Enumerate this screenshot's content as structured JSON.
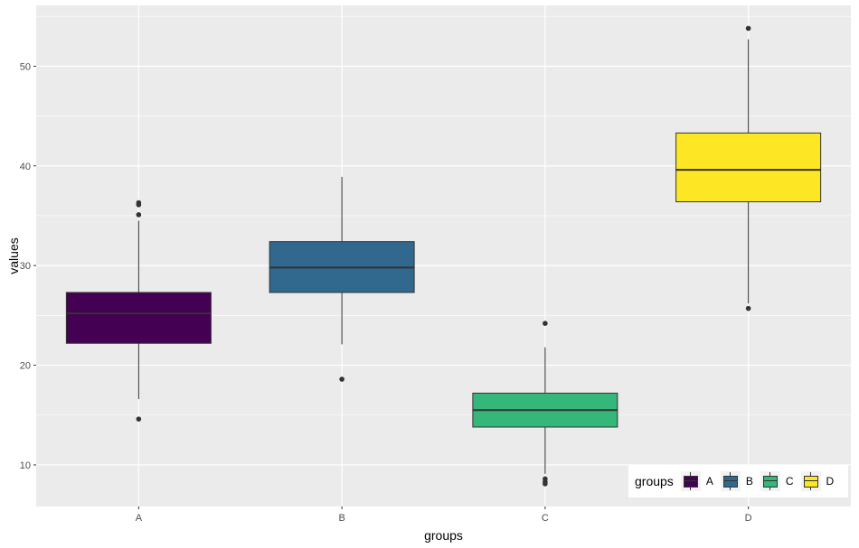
{
  "chart_data": {
    "type": "boxplot",
    "xlabel": "groups",
    "ylabel": "values",
    "ylim": [
      5.83,
      56.1
    ],
    "yticks": [
      10,
      20,
      30,
      40,
      50
    ],
    "categories": [
      "A",
      "B",
      "C",
      "D"
    ],
    "colors": [
      "#440154",
      "#31688E",
      "#35B779",
      "#FDE725"
    ],
    "boxes": [
      {
        "group": "A",
        "lower_whisker": 16.6,
        "q1": 22.2,
        "median": 25.2,
        "q3": 27.3,
        "upper_whisker": 34.5,
        "outliers": [
          36.3,
          36.1,
          35.1,
          14.6
        ]
      },
      {
        "group": "B",
        "lower_whisker": 22.1,
        "q1": 27.3,
        "median": 29.8,
        "q3": 32.4,
        "upper_whisker": 38.9,
        "outliers": [
          18.6
        ]
      },
      {
        "group": "C",
        "lower_whisker": 9.1,
        "q1": 13.8,
        "median": 15.5,
        "q3": 17.2,
        "upper_whisker": 21.8,
        "outliers": [
          24.2,
          8.6,
          8.3,
          8.1
        ]
      },
      {
        "group": "D",
        "lower_whisker": 26.2,
        "q1": 36.4,
        "median": 39.6,
        "q3": 43.3,
        "upper_whisker": 52.7,
        "outliers": [
          53.8,
          25.7
        ]
      }
    ],
    "legend": {
      "title": "groups",
      "position": "bottom-right",
      "labels": [
        "A",
        "B",
        "C",
        "D"
      ]
    }
  }
}
